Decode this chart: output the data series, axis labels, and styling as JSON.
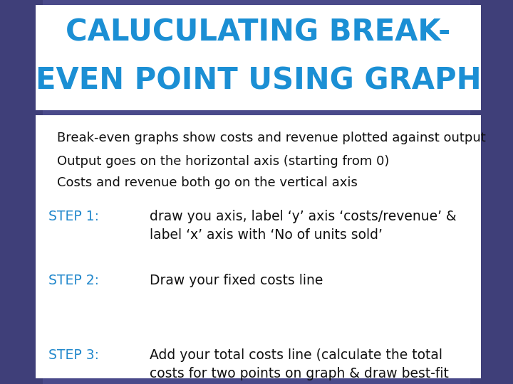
{
  "title_line1": "CALUCULATING BREAK-",
  "title_line2": "EVEN POINT USING GRAPH",
  "title_color": "#1B8FD4",
  "title_bg_color": "#FFFFFF",
  "background_color": "#4A4A8A",
  "content_bg_color": "#FFFFFF",
  "bullet_line1": "Break-even graphs show costs and revenue plotted against output",
  "bullet_line2": "Output goes on the horizontal axis (starting from 0)",
  "bullet_line3": "Costs and revenue both go on the vertical axis",
  "step_label_color": "#2288CC",
  "step_text_color": "#111111",
  "step1_label": "STEP 1:",
  "step1_text": "draw you axis, label ‘y’ axis ‘costs/revenue’ &\nlabel ‘x’ axis with ‘No of units sold’",
  "step2_label": "STEP 2:",
  "step2_text": "Draw your fixed costs line",
  "step3_label": "STEP 3:",
  "step3_text": "Add your total costs line (calculate the total\ncosts for two points on graph & draw best-fit\nline)",
  "fig_width": 7.2,
  "fig_height": 5.4,
  "dpi": 100
}
